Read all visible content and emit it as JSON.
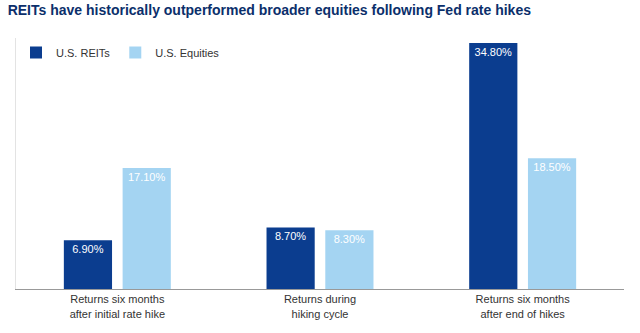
{
  "chart_data": {
    "type": "bar",
    "title": "REITs have historically outperformed broader equities following Fed rate hikes",
    "categories": [
      "Returns six months\nafter initial rate hike",
      "Returns during\nhiking cycle",
      "Returns six months\nafter end of hikes"
    ],
    "series": [
      {
        "name": "U.S. REITs",
        "color": "#0b3d8f",
        "values": [
          6.9,
          8.7,
          34.8
        ],
        "value_labels": [
          "6.90%",
          "8.70%",
          "34.80%"
        ]
      },
      {
        "name": "U.S. Equities",
        "color": "#a4d4f2",
        "values": [
          17.1,
          8.3,
          18.5
        ],
        "value_labels": [
          "17.10%",
          "8.30%",
          "18.50%"
        ]
      }
    ],
    "ylim": [
      0,
      35.5
    ],
    "tick_labels": "x",
    "data_labels": true,
    "legend": "top-left",
    "grid": false
  }
}
